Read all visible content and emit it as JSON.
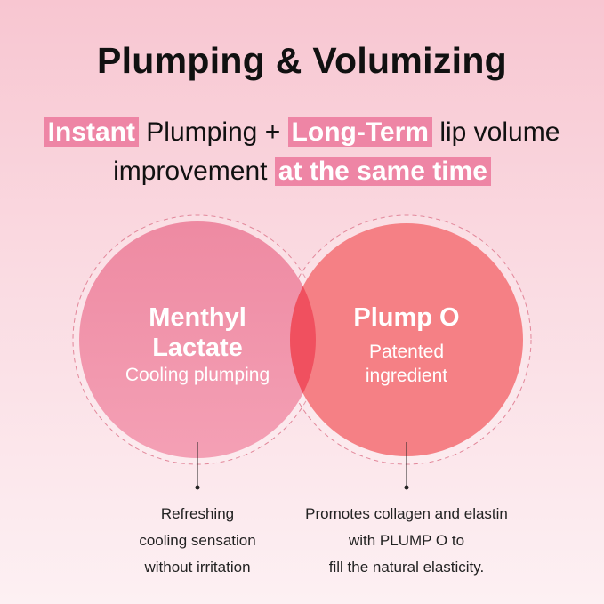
{
  "title": "Plumping & Volumizing",
  "subtitle": {
    "line1": [
      {
        "text": "Instant",
        "highlight": true
      },
      {
        "text": " Plumping + ",
        "highlight": false
      },
      {
        "text": "Long-Term",
        "highlight": true
      },
      {
        "text": " lip volume",
        "highlight": false
      }
    ],
    "line2": [
      {
        "text": "improvement ",
        "highlight": false
      },
      {
        "text": "at the same time",
        "highlight": true
      }
    ]
  },
  "colors": {
    "highlight": "#ee85a5",
    "left_circle": "#ef8ea6",
    "right_circle": "#f57f85",
    "overlap": "#f0505f"
  },
  "left": {
    "name_line1": "Menthyl",
    "name_line2": "Lactate",
    "desc": "Cooling plumping",
    "note": [
      "Refreshing",
      "cooling sensation",
      "without irritation"
    ]
  },
  "right": {
    "name": "Plump O",
    "desc_line1": "Patented",
    "desc_line2": "ingredient",
    "note": [
      "Promotes collagen and elastin",
      "with PLUMP O to",
      "fill the natural elasticity."
    ]
  }
}
